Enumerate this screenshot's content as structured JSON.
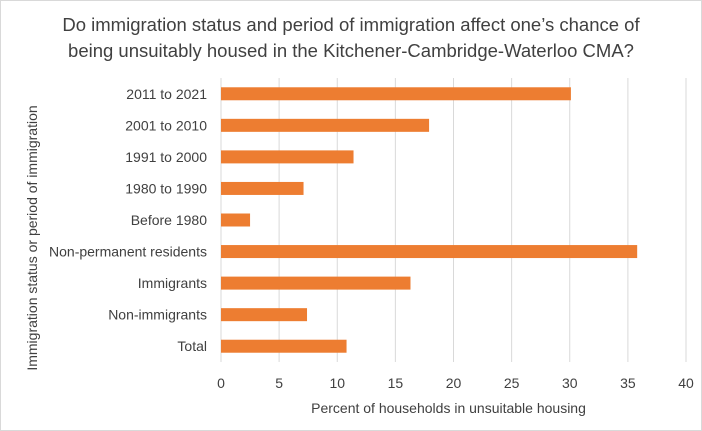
{
  "chart_data": {
    "type": "bar",
    "orientation": "horizontal",
    "title_lines": [
      "Do immigration status and period of immigration affect one’s chance of",
      "being unsuitably housed in the Kitchener-Cambridge-Waterloo CMA?"
    ],
    "categories": [
      "2011 to 2021",
      "2001 to 2010",
      "1991 to 2000",
      "1980 to 1990",
      "Before 1980",
      "Non-permanent residents",
      "Immigrants",
      "Non-immigrants",
      "Total"
    ],
    "values": [
      30.1,
      17.9,
      11.4,
      7.1,
      2.5,
      35.8,
      16.3,
      7.4,
      10.8
    ],
    "xlabel": "Percent of households in unsuitable housing",
    "ylabel": "Immigration status or period of immigration",
    "xlim": [
      0,
      40
    ],
    "xticks": [
      0,
      5,
      10,
      15,
      20,
      25,
      30,
      35,
      40
    ],
    "grid": "vertical",
    "legend": "none",
    "bar_color": "#ED7D31",
    "grid_color": "#d9d9d9"
  }
}
